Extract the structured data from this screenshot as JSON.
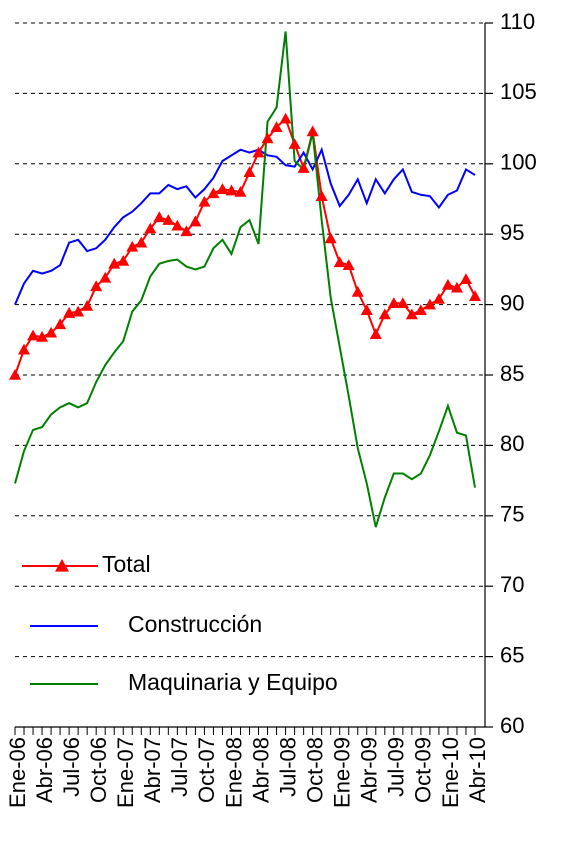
{
  "chart_data": {
    "type": "line",
    "categories": [
      "Ene-06",
      null,
      null,
      "Abr-06",
      null,
      null,
      "Jul-06",
      null,
      null,
      "Oct-06",
      null,
      null,
      "Ene-07",
      null,
      null,
      "Abr-07",
      null,
      null,
      "Jul-07",
      null,
      null,
      "Oct-07",
      null,
      null,
      "Ene-08",
      null,
      null,
      "Abr-08",
      null,
      null,
      "Jul-08",
      null,
      null,
      "Oct-08",
      null,
      null,
      "Ene-09",
      null,
      null,
      "Abr-09",
      null,
      null,
      "Jul-09",
      null,
      null,
      "Oct-09",
      null,
      null,
      "Ene-10",
      null,
      null,
      "Abr-10"
    ],
    "series": [
      {
        "name": "Total",
        "color": "#ff0000",
        "marker": "triangle",
        "values": [
          85.0,
          86.8,
          87.8,
          87.7,
          88.0,
          88.6,
          89.4,
          89.5,
          89.9,
          91.3,
          91.9,
          92.9,
          93.1,
          94.1,
          94.4,
          95.4,
          96.2,
          96.0,
          95.6,
          95.2,
          95.9,
          97.3,
          97.9,
          98.2,
          98.1,
          98.0,
          99.4,
          100.8,
          101.8,
          102.6,
          103.2,
          101.4,
          99.7,
          102.3,
          97.7,
          94.7,
          93.0,
          92.8,
          90.9,
          89.6,
          87.9,
          89.3,
          90.1,
          90.1,
          89.3,
          89.6,
          90.0,
          90.4,
          91.4,
          91.2,
          91.8,
          90.6
        ]
      },
      {
        "name": "Construcción",
        "color": "#0000ff",
        "values": [
          90.0,
          91.5,
          92.4,
          92.2,
          92.4,
          92.8,
          94.4,
          94.6,
          93.8,
          94.0,
          94.6,
          95.5,
          96.2,
          96.6,
          97.2,
          97.9,
          97.9,
          98.5,
          98.2,
          98.4,
          97.6,
          98.2,
          99.0,
          100.2,
          100.6,
          101.0,
          100.8,
          101.0,
          100.6,
          100.5,
          99.9,
          99.8,
          100.8,
          99.6,
          101.0,
          98.6,
          97.0,
          97.8,
          98.9,
          97.2,
          98.9,
          97.9,
          98.9,
          99.6,
          98.0,
          97.8,
          97.7,
          96.9,
          97.8,
          98.1,
          99.6,
          99.2
        ]
      },
      {
        "name": "Maquinaria y Equipo",
        "color": "#008000",
        "values": [
          77.3,
          79.6,
          81.1,
          81.3,
          82.2,
          82.7,
          83.0,
          82.7,
          83.0,
          84.5,
          85.7,
          86.6,
          87.4,
          89.5,
          90.3,
          92.0,
          92.9,
          93.1,
          93.2,
          92.7,
          92.5,
          92.7,
          94.0,
          94.6,
          93.6,
          95.5,
          96.0,
          94.3,
          103.0,
          104.0,
          109.4,
          100.2,
          99.6,
          102.2,
          96.0,
          90.5,
          87.0,
          83.5,
          79.8,
          77.3,
          74.2,
          76.3,
          78.0,
          78.0,
          77.6,
          78.0,
          79.3,
          81.0,
          82.8,
          80.9,
          80.7,
          77.0
        ]
      }
    ],
    "ylim": [
      60,
      110
    ],
    "yticks": [
      60,
      65,
      70,
      75,
      80,
      85,
      90,
      95,
      100,
      105,
      110
    ],
    "y_axis_side": "right",
    "grid": true
  }
}
